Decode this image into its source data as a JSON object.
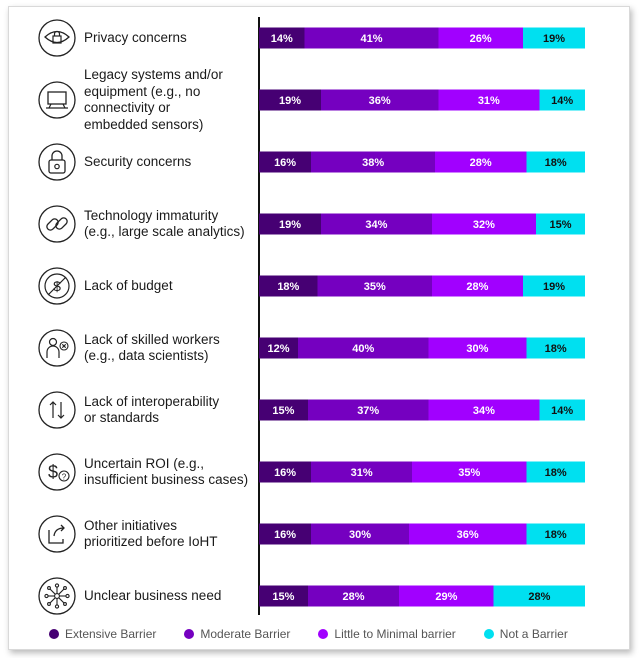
{
  "chart_data": {
    "type": "bar",
    "orientation": "horizontal",
    "stacked": true,
    "categories": [
      "Privacy concerns",
      "Legacy systems and/or\nequipment (e.g., no\nconnectivity or\nembedded sensors)",
      "Security concerns",
      "Technology immaturity\n(e.g., large scale analytics)",
      "Lack of budget",
      "Lack of skilled workers\n(e.g., data scientists)",
      "Lack of interoperability\nor standards",
      "Uncertain ROI (e.g.,\ninsufficient business cases)",
      "Other initiatives\nprioritized before IoHT",
      "Unclear business need"
    ],
    "icons": [
      "eye-lock-icon",
      "computer-icon",
      "padlock-icon",
      "broken-chain-icon",
      "no-dollar-icon",
      "person-x-icon",
      "up-down-arrows-icon",
      "dollar-question-icon",
      "forward-arrow-icon",
      "network-icon"
    ],
    "series": [
      {
        "name": "Extensive Barrier",
        "color": "#460073",
        "values": [
          14,
          19,
          16,
          19,
          18,
          12,
          15,
          16,
          16,
          15
        ]
      },
      {
        "name": "Moderate Barrier",
        "color": "#7500c0",
        "values": [
          41,
          36,
          38,
          34,
          35,
          40,
          37,
          31,
          30,
          28
        ]
      },
      {
        "name": "Little to Minimal barrier",
        "color": "#a100ff",
        "values": [
          26,
          31,
          28,
          32,
          28,
          30,
          34,
          35,
          36,
          29
        ]
      },
      {
        "name": "Not a Barrier",
        "color": "#00e0f0",
        "values": [
          19,
          14,
          18,
          15,
          19,
          18,
          14,
          18,
          18,
          28
        ]
      }
    ],
    "value_suffix": "%",
    "xlim": [
      0,
      100
    ],
    "legend_position": "bottom"
  }
}
